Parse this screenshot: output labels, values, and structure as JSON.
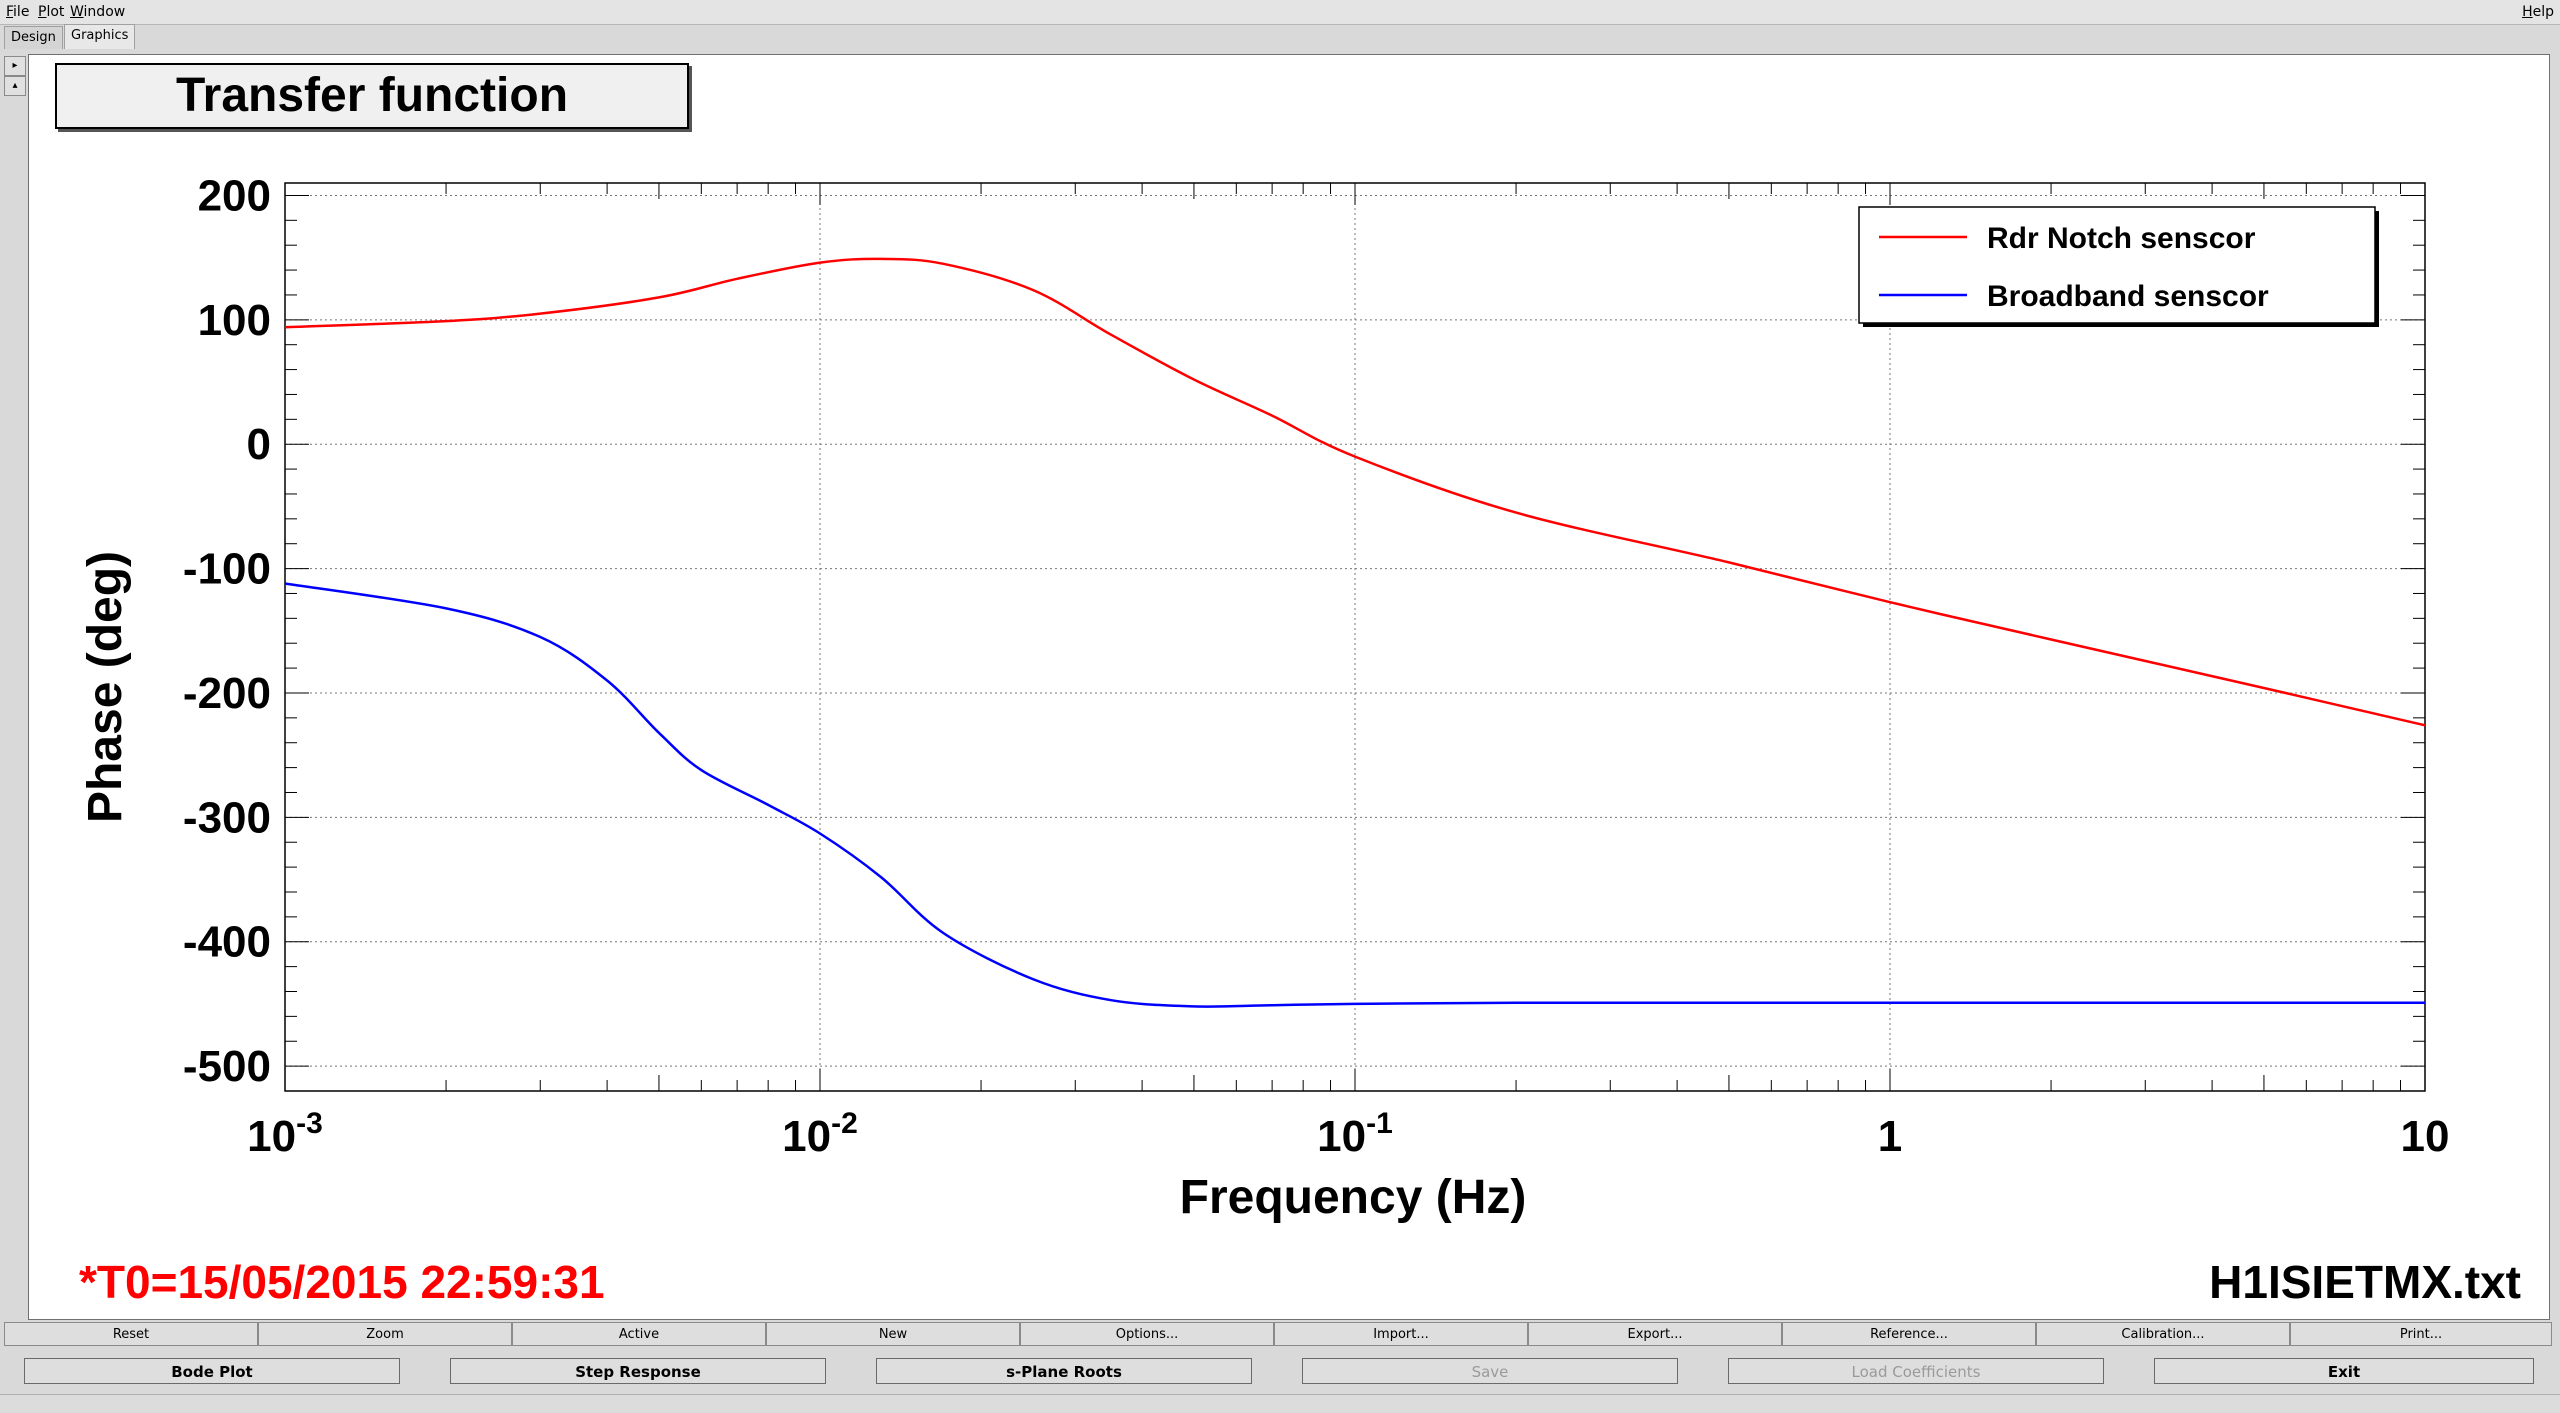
{
  "menu": {
    "file": "File",
    "plot": "Plot",
    "window": "Window",
    "help": "Help"
  },
  "tabs": {
    "design": "Design",
    "graphics": "Graphics"
  },
  "plot": {
    "title": "Transfer function",
    "t0_label": "*T0=15/05/2015 22:59:31",
    "file_label": "H1ISIETMX.txt"
  },
  "chart_data": {
    "type": "line",
    "title": "Transfer function",
    "xlabel": "Frequency (Hz)",
    "ylabel": "Phase (deg)",
    "xscale": "log",
    "xlim": [
      0.001,
      10
    ],
    "ylim": [
      -520,
      210
    ],
    "xticks": [
      {
        "value": 0.001,
        "base": "10",
        "exp": "-3"
      },
      {
        "value": 0.01,
        "base": "10",
        "exp": "-2"
      },
      {
        "value": 0.1,
        "base": "10",
        "exp": "-1"
      },
      {
        "value": 1,
        "base": "1",
        "exp": ""
      },
      {
        "value": 10,
        "base": "10",
        "exp": ""
      }
    ],
    "yticks": [
      200,
      100,
      0,
      -100,
      -200,
      -300,
      -400,
      -500
    ],
    "grid": true,
    "legend_position": "top-right",
    "series": [
      {
        "name": "Rdr Notch senscor",
        "color": "#ff0000",
        "x": [
          0.001,
          0.002,
          0.003,
          0.005,
          0.007,
          0.01,
          0.013,
          0.017,
          0.025,
          0.035,
          0.05,
          0.07,
          0.1,
          0.2,
          0.5,
          1,
          2,
          5,
          10
        ],
        "y": [
          94,
          99,
          105,
          118,
          133,
          146,
          149,
          145,
          124,
          88,
          52,
          23,
          -10,
          -55,
          -95,
          -127,
          -157,
          -196,
          -226
        ]
      },
      {
        "name": "Broadband senscor",
        "color": "#0000ff",
        "x": [
          0.001,
          0.002,
          0.003,
          0.004,
          0.005,
          0.006,
          0.008,
          0.01,
          0.013,
          0.017,
          0.025,
          0.035,
          0.05,
          0.07,
          0.1,
          0.2,
          1,
          10
        ],
        "y": [
          -112,
          -132,
          -155,
          -190,
          -232,
          -262,
          -290,
          -313,
          -348,
          -393,
          -430,
          -447,
          -452,
          -451,
          -450,
          -449,
          -449,
          -449
        ]
      }
    ]
  },
  "toolbar": {
    "reset": "Reset",
    "zoom": "Zoom",
    "active": "Active",
    "new": "New",
    "options": "Options...",
    "import": "Import...",
    "export": "Export...",
    "reference": "Reference...",
    "calibration": "Calibration...",
    "print": "Print..."
  },
  "actions": {
    "bode_plot": "Bode Plot",
    "step_response": "Step Response",
    "splane_roots": "s-Plane Roots",
    "save": "Save",
    "load_coefficients": "Load Coefficients",
    "exit": "Exit"
  }
}
